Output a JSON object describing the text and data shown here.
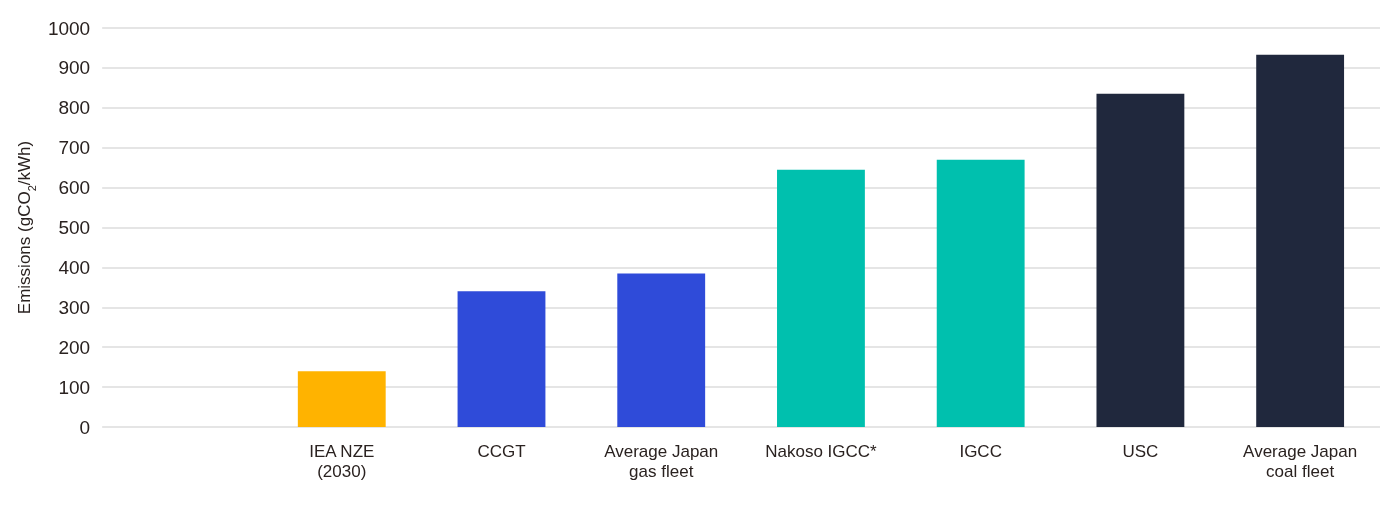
{
  "chart_data": {
    "type": "bar",
    "ylabel": "Emissions (gCO$_{2}$/kWh)",
    "categories": [
      null,
      "IEA NZE\n(2030)",
      "CCGT",
      "Average Japan\ngas fleet",
      "Nakoso IGCC*",
      "IGCC",
      "USC",
      "Average Japan\ncoal fleet"
    ],
    "values": [
      null,
      140,
      340,
      385,
      645,
      670,
      835,
      933
    ],
    "colors": [
      "#ffb300",
      "#ffb300",
      "#2f4bd9",
      "#2f4bd9",
      "#00c0ae",
      "#00c0ae",
      "#20283d",
      "#20283d"
    ],
    "ylim": [
      0,
      1000
    ],
    "yticks": [
      0,
      100,
      200,
      300,
      400,
      500,
      600,
      700,
      800,
      900,
      1000
    ],
    "grid": "y"
  }
}
